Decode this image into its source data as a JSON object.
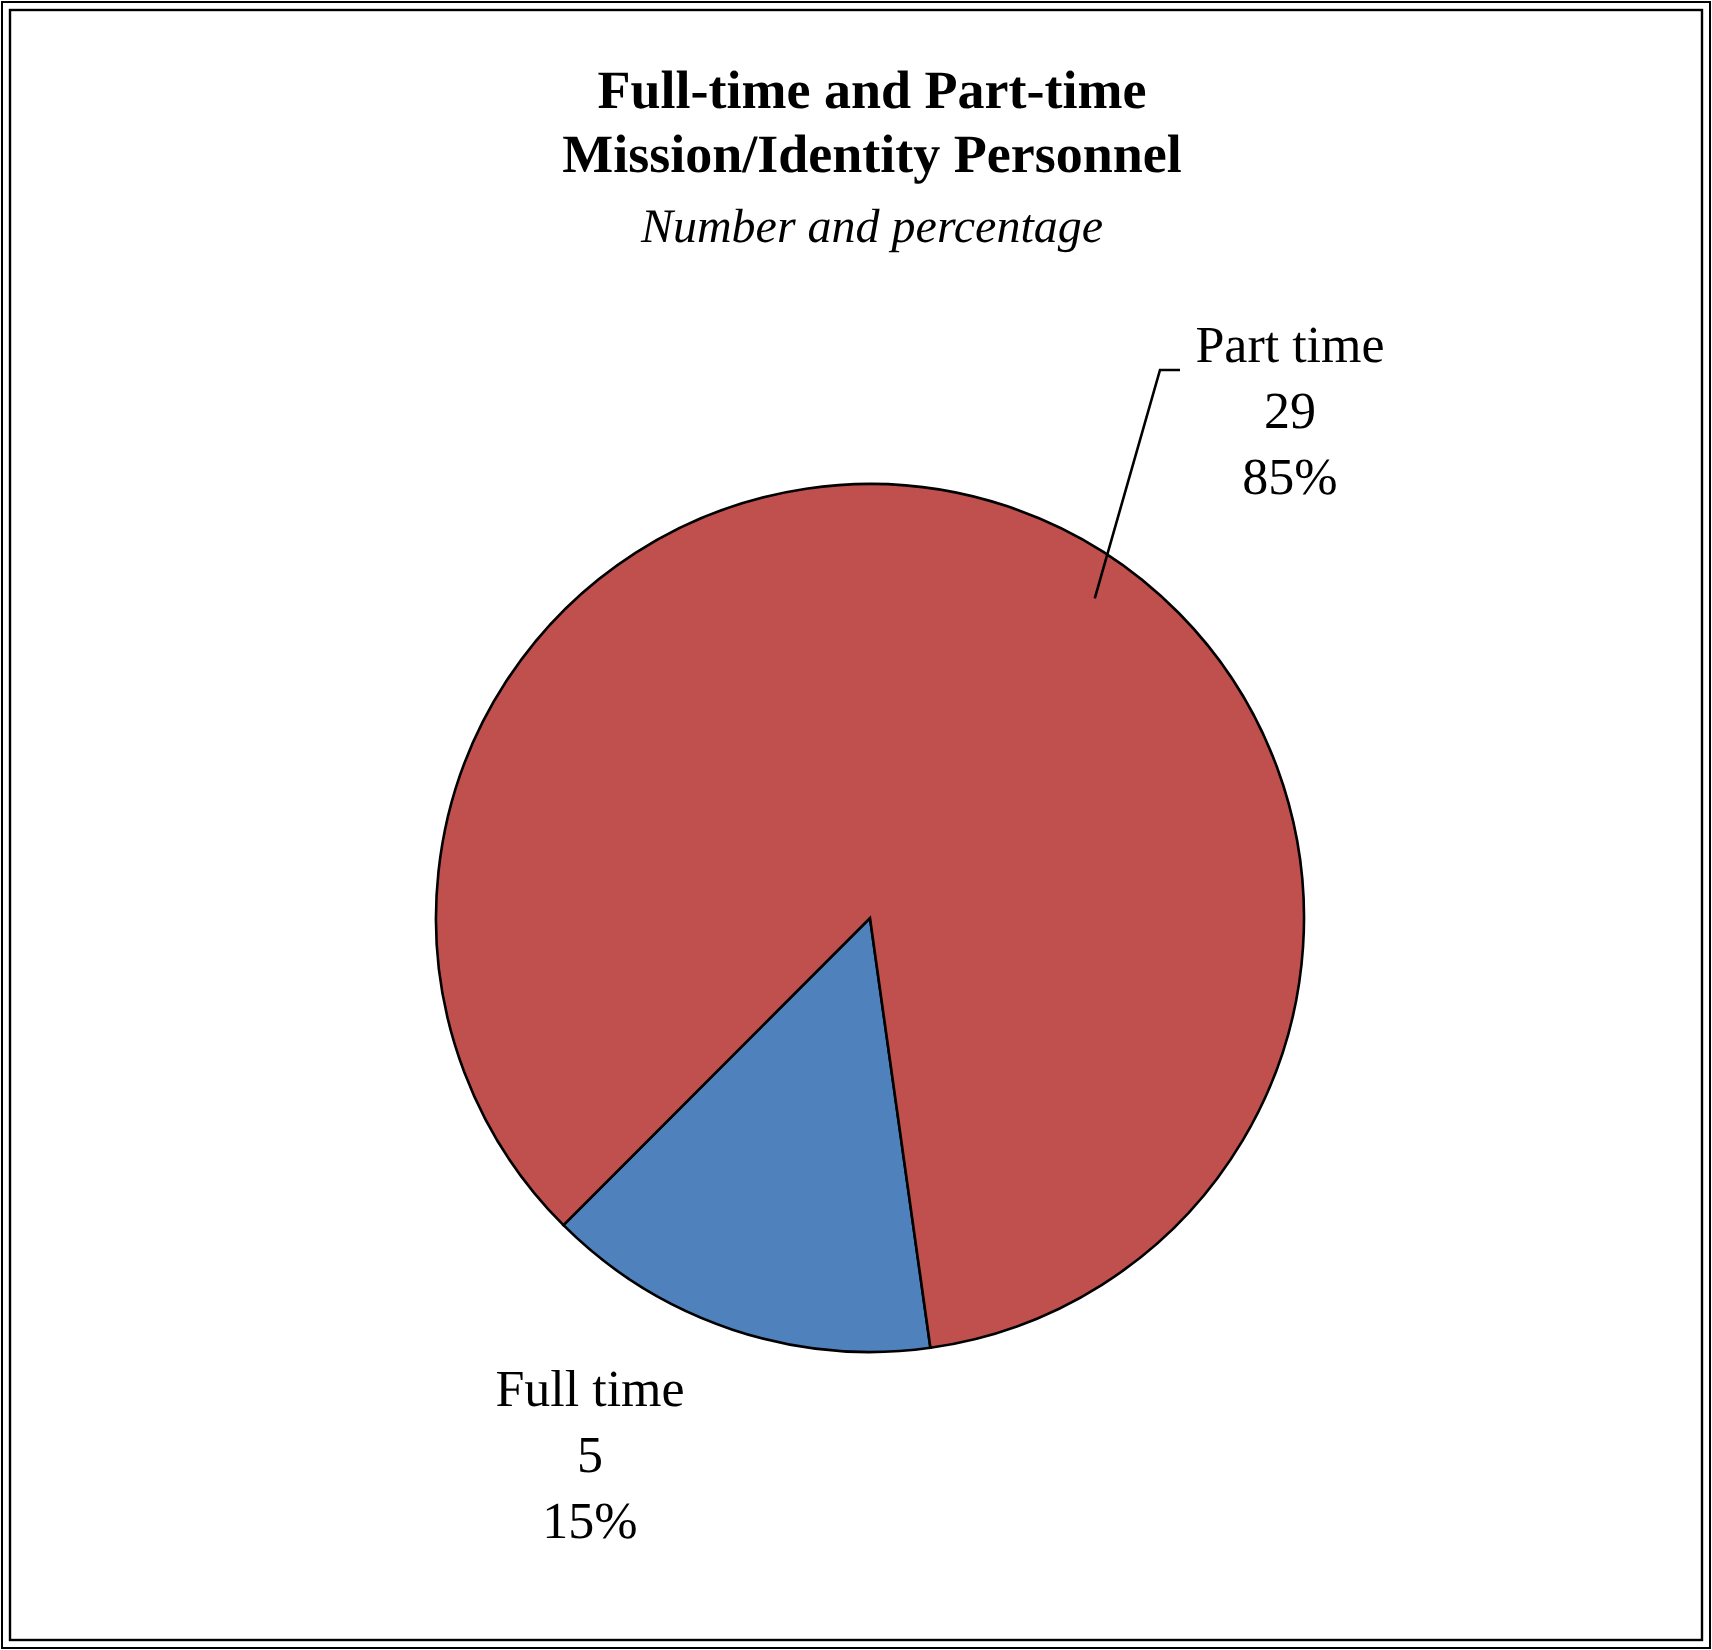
{
  "chart_data": {
    "type": "pie",
    "title": "Full-time and Part-time\nMission/Identity Personnel",
    "subtitle": "Number and percentage",
    "categories": [
      "Full time",
      "Part time"
    ],
    "values": [
      5,
      29
    ],
    "colors": [
      "#4f81bd",
      "#c0504d"
    ],
    "value_labels": [
      "5\n15%",
      "29\n85%"
    ]
  }
}
